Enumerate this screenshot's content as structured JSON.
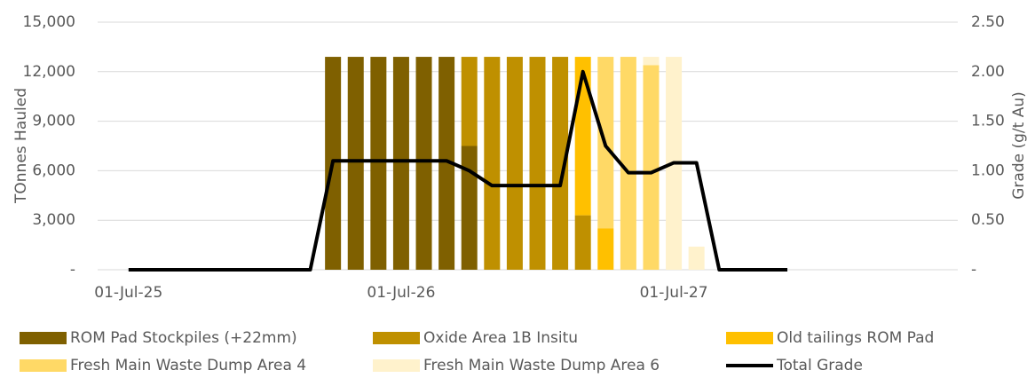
{
  "chart_data": {
    "type": "bar",
    "stacked": true,
    "categories": [
      "01-Jul-25",
      null,
      null,
      null,
      null,
      null,
      null,
      null,
      null,
      null,
      null,
      null,
      "01-Jul-26",
      null,
      null,
      null,
      null,
      null,
      null,
      null,
      null,
      null,
      null,
      null,
      "01-Jul-27",
      null,
      null,
      null,
      null,
      null,
      null,
      null,
      null,
      null,
      null,
      null,
      null
    ],
    "series": [
      {
        "name": "ROM Pad Stockpiles (+22mm)",
        "color": "#7f6000",
        "type": "bar",
        "axis": "y",
        "values": [
          0,
          0,
          0,
          0,
          0,
          0,
          0,
          0,
          0,
          12900,
          12900,
          12900,
          12900,
          12900,
          12900,
          7500,
          0,
          0,
          0,
          0,
          0,
          0,
          0,
          0,
          0,
          0,
          0,
          0,
          0,
          0,
          0,
          0,
          0,
          0,
          0,
          0,
          0
        ]
      },
      {
        "name": "Oxide Area 1B Insitu",
        "color": "#bf9000",
        "type": "bar",
        "axis": "y",
        "values": [
          0,
          0,
          0,
          0,
          0,
          0,
          0,
          0,
          0,
          0,
          0,
          0,
          0,
          0,
          0,
          5400,
          12900,
          12900,
          12900,
          12900,
          3300,
          0,
          0,
          0,
          0,
          0,
          0,
          0,
          0,
          0,
          0,
          0,
          0,
          0,
          0,
          0,
          0
        ]
      },
      {
        "name": "Old tailings ROM Pad",
        "color": "#ffc000",
        "type": "bar",
        "axis": "y",
        "values": [
          0,
          0,
          0,
          0,
          0,
          0,
          0,
          0,
          0,
          0,
          0,
          0,
          0,
          0,
          0,
          0,
          0,
          0,
          0,
          0,
          9600,
          2500,
          0,
          0,
          0,
          0,
          0,
          0,
          0,
          0,
          0,
          0,
          0,
          0,
          0,
          0,
          0
        ]
      },
      {
        "name": "Fresh Main Waste Dump Area 4",
        "color": "#ffd966",
        "type": "bar",
        "axis": "y",
        "values": [
          0,
          0,
          0,
          0,
          0,
          0,
          0,
          0,
          0,
          0,
          0,
          0,
          0,
          0,
          0,
          0,
          0,
          0,
          0,
          0,
          0,
          10400,
          12900,
          12400,
          0,
          0,
          0,
          0,
          0,
          0,
          0,
          0,
          0,
          0,
          0,
          0,
          0
        ]
      },
      {
        "name": "Fresh Main Waste Dump Area 6",
        "color": "#fff2cc",
        "type": "bar",
        "axis": "y",
        "values": [
          0,
          0,
          0,
          0,
          0,
          0,
          0,
          0,
          0,
          0,
          0,
          0,
          0,
          0,
          0,
          0,
          0,
          0,
          0,
          0,
          0,
          0,
          0,
          500,
          12900,
          1400,
          0,
          0,
          0,
          0,
          0,
          0,
          0,
          0,
          0,
          0,
          0
        ]
      },
      {
        "name": "Total Grade",
        "color": "#000000",
        "type": "line",
        "axis": "y2",
        "values": [
          0,
          0,
          0,
          0,
          0,
          0,
          0,
          0,
          0,
          1.1,
          1.1,
          1.1,
          1.1,
          1.1,
          1.1,
          1.0,
          0.85,
          0.85,
          0.85,
          0.85,
          2.0,
          1.25,
          0.98,
          0.98,
          1.08,
          1.08,
          0,
          0,
          0,
          0,
          null,
          null,
          null,
          null,
          null,
          null,
          null
        ]
      }
    ],
    "ylabel": "TOnnes Hauled",
    "y2label": "Grade (g/t Au)",
    "ylim": [
      0,
      15000
    ],
    "yticks": [
      {
        "value": 0,
        "label": "-"
      },
      {
        "value": 3000,
        "label": "3,000"
      },
      {
        "value": 6000,
        "label": "6,000"
      },
      {
        "value": 9000,
        "label": "9,000"
      },
      {
        "value": 12000,
        "label": "12,000"
      },
      {
        "value": 15000,
        "label": "15,000"
      }
    ],
    "y2lim": [
      0,
      2.5
    ],
    "y2ticks": [
      {
        "value": 0,
        "label": "-"
      },
      {
        "value": 0.5,
        "label": "0.50"
      },
      {
        "value": 1.0,
        "label": "1.00"
      },
      {
        "value": 1.5,
        "label": "1.50"
      },
      {
        "value": 2.0,
        "label": "2.00"
      },
      {
        "value": 2.5,
        "label": "2.50"
      }
    ],
    "grid": true,
    "legend": "bottom"
  }
}
